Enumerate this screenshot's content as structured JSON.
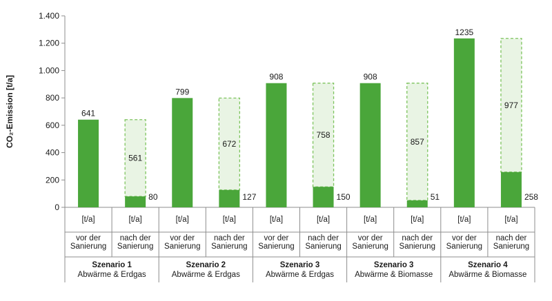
{
  "chart_data": {
    "type": "bar",
    "ylabel": "CO₂-Emission [t/a]",
    "ylim": [
      0,
      1400
    ],
    "yticks": [
      0,
      200,
      400,
      600,
      800,
      1000,
      1200,
      1400
    ],
    "ytick_labels": [
      "0",
      "200",
      "400",
      "600",
      "800",
      "1.000",
      "1.200",
      "1.400"
    ],
    "grid": false,
    "unit_row_label": "[t/a]",
    "colors": {
      "solid": "#4aa63a",
      "ghost_fill": "#e9f4e4",
      "ghost_border": "#7cc35c"
    },
    "groups": [
      {
        "title": "Szenario 1",
        "subtitle": "Abwärme & Erdgas"
      },
      {
        "title": "Szenario 2",
        "subtitle": "Abwärme & Erdgas"
      },
      {
        "title": "Szenario 3",
        "subtitle": "Abwärme & Erdgas"
      },
      {
        "title": "Szenario 3",
        "subtitle": "Abwärme & Biomasse"
      },
      {
        "title": "Szenario 4",
        "subtitle": "Abwärme & Biomasse"
      }
    ],
    "bars": [
      {
        "group": 0,
        "line1": "vor der",
        "line2": "Sanierung",
        "value": 641,
        "label": "641"
      },
      {
        "group": 0,
        "line1": "nach der",
        "line2": "Sanierung",
        "value": 80,
        "label": "80",
        "reduction": 561,
        "reduction_label": "561"
      },
      {
        "group": 1,
        "line1": "vor der",
        "line2": "Sanierung",
        "value": 799,
        "label": "799"
      },
      {
        "group": 1,
        "line1": "nach der",
        "line2": "Sanierung",
        "value": 127,
        "label": "127",
        "reduction": 672,
        "reduction_label": "672"
      },
      {
        "group": 2,
        "line1": "vor der",
        "line2": "Sanierung",
        "value": 908,
        "label": "908"
      },
      {
        "group": 2,
        "line1": "nach der",
        "line2": "Sanierung",
        "value": 150,
        "label": "150",
        "reduction": 758,
        "reduction_label": "758"
      },
      {
        "group": 3,
        "line1": "vor der",
        "line2": "Sanierung",
        "value": 908,
        "label": "908"
      },
      {
        "group": 3,
        "line1": "nach der",
        "line2": "Sanierung",
        "value": 51,
        "label": "51",
        "reduction": 857,
        "reduction_label": "857"
      },
      {
        "group": 4,
        "line1": "vor der",
        "line2": "Sanierung",
        "value": 1235,
        "label": "1235"
      },
      {
        "group": 4,
        "line1": "nach der",
        "line2": "Sanierung",
        "value": 258,
        "label": "258",
        "reduction": 977,
        "reduction_label": "977"
      }
    ]
  }
}
